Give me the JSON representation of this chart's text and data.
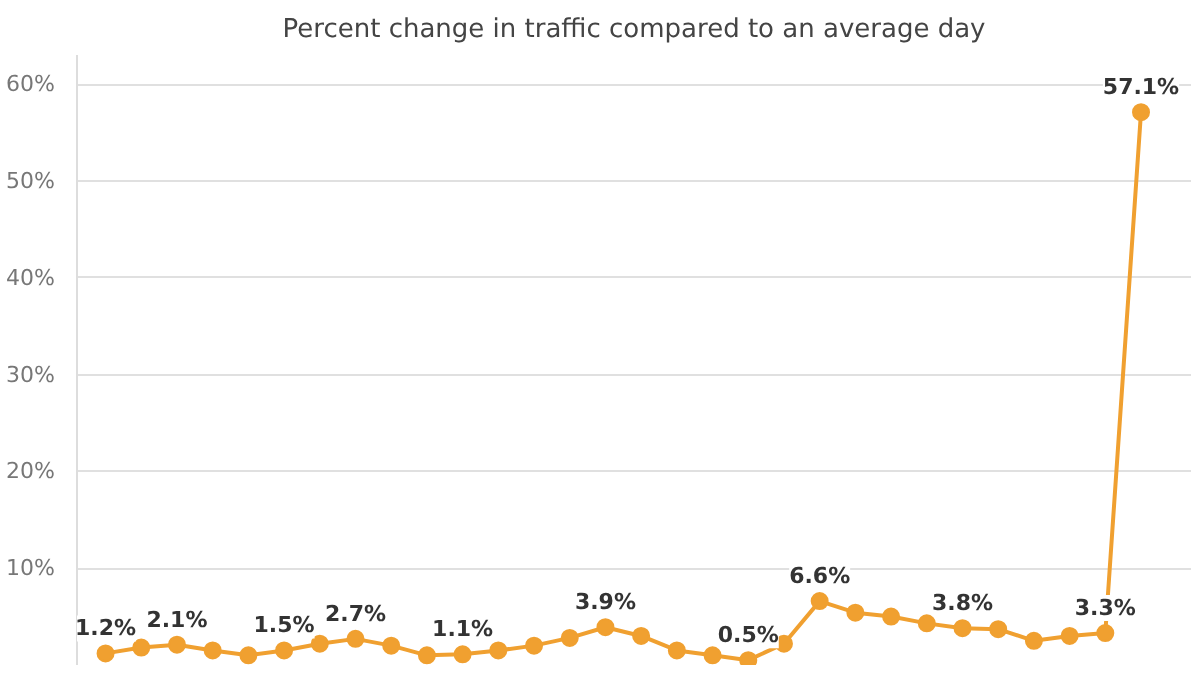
{
  "chart_data": {
    "type": "line",
    "title": "Percent change in traffic compared to an average day",
    "categories": [
      null,
      null,
      null,
      null,
      null,
      null,
      null,
      null,
      null,
      null,
      null,
      null,
      null,
      null,
      null,
      null,
      null,
      null,
      null,
      null,
      null,
      null,
      null,
      null,
      null,
      null,
      null,
      null,
      null,
      null
    ],
    "series": [
      {
        "color": "#f0a030",
        "values": [
          1.2,
          1.8,
          2.1,
          1.5,
          1.0,
          1.5,
          2.2,
          2.7,
          2.0,
          1.0,
          1.1,
          1.5,
          2.0,
          2.8,
          3.9,
          3.0,
          1.5,
          1.0,
          0.5,
          2.2,
          6.6,
          5.4,
          5.0,
          4.3,
          3.8,
          3.7,
          2.5,
          3.0,
          3.3,
          57.1
        ],
        "value_labels": [
          "1.2%",
          null,
          "2.1%",
          null,
          null,
          "1.5%",
          null,
          "2.7%",
          null,
          null,
          "1.1%",
          null,
          null,
          null,
          "3.9%",
          null,
          null,
          null,
          "0.5%",
          null,
          "6.6%",
          null,
          null,
          null,
          "3.8%",
          null,
          null,
          null,
          "3.3%",
          "57.1%"
        ]
      }
    ],
    "ylim": [
      0,
      63
    ],
    "yticks": [
      {
        "value": 10,
        "label": "10%"
      },
      {
        "value": 20,
        "label": "20%"
      },
      {
        "value": 30,
        "label": "30%"
      },
      {
        "value": 40,
        "label": "40%"
      },
      {
        "value": 50,
        "label": "50%"
      },
      {
        "value": 60,
        "label": "60%"
      }
    ],
    "grid": "y",
    "marker": "circle",
    "line_style": "solid",
    "tick_labels": "y"
  }
}
